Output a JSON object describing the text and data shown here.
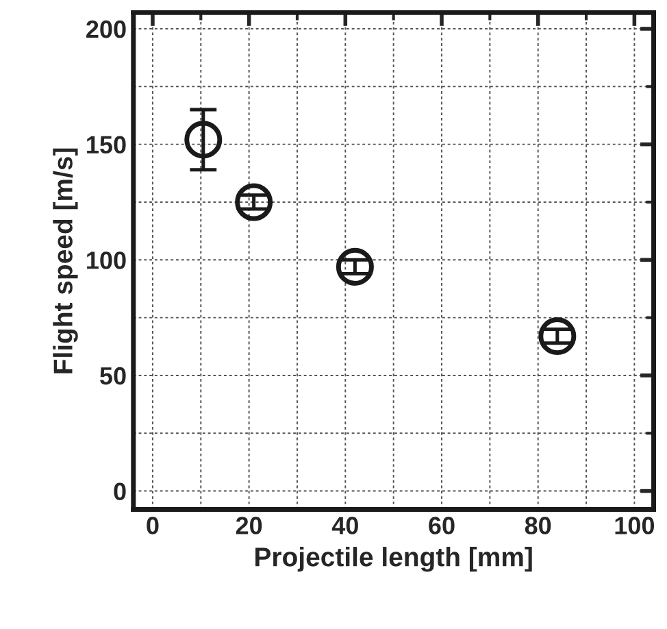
{
  "chart_data": {
    "type": "scatter",
    "xlabel": "Projectile length [mm]",
    "ylabel": "Flight speed [m/s]",
    "x": [
      10.5,
      21,
      42,
      84
    ],
    "values": [
      152,
      125,
      97,
      67
    ],
    "errors": [
      13,
      3,
      3,
      3
    ],
    "color": "#1a1a1a",
    "marker": "circle",
    "xlim": [
      -4,
      104
    ],
    "ylim": [
      -8,
      207
    ],
    "xticks": [
      0,
      20,
      40,
      60,
      80,
      100
    ],
    "yticks": [
      0,
      50,
      100,
      150,
      200
    ],
    "grid": true
  }
}
